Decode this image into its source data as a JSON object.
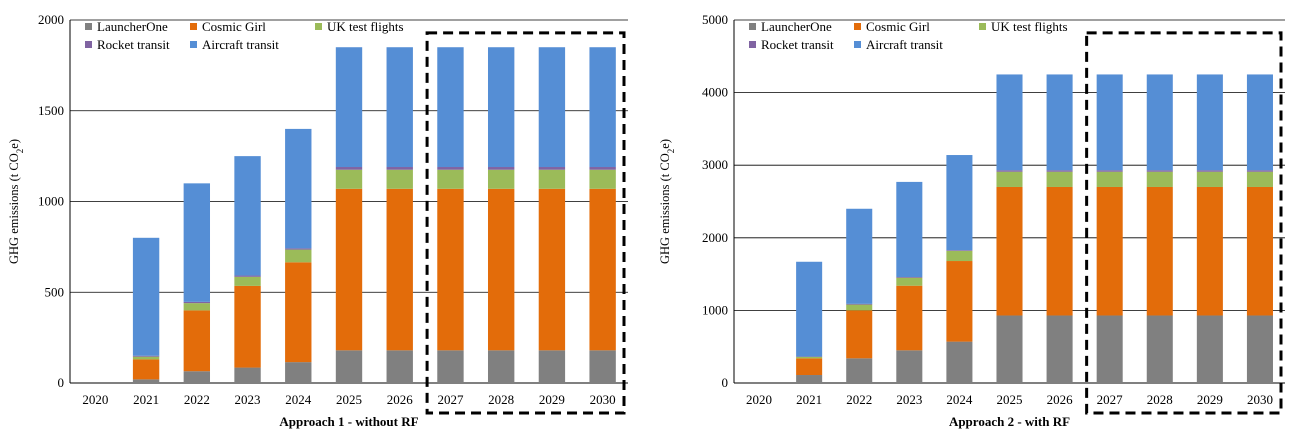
{
  "chart_data": [
    {
      "type": "bar",
      "stacked": true,
      "caption": "Approach 1 - without RF",
      "ylabel_main": "GHG emissions (t CO",
      "ylabel_sub": "2",
      "ylabel_end": "e)",
      "ylim": [
        0,
        2000
      ],
      "yticks": [
        0,
        500,
        1000,
        1500,
        2000
      ],
      "grid": true,
      "legend_placement": "top-left",
      "categories": [
        "2020",
        "2021",
        "2022",
        "2023",
        "2024",
        "2025",
        "2026",
        "2027",
        "2028",
        "2029",
        "2030"
      ],
      "highlight_box": {
        "from": "2027",
        "to": "2030",
        "style": "dashed"
      },
      "series": [
        {
          "name": "LauncherOne",
          "color": "#808080",
          "values": [
            0,
            20,
            65,
            85,
            115,
            180,
            180,
            180,
            180,
            180,
            180
          ]
        },
        {
          "name": "Cosmic Girl",
          "color": "#e36c0a",
          "values": [
            0,
            110,
            335,
            450,
            550,
            890,
            890,
            890,
            890,
            890,
            890
          ]
        },
        {
          "name": "UK test flights",
          "color": "#9bbb59",
          "values": [
            0,
            15,
            40,
            50,
            70,
            105,
            105,
            105,
            105,
            105,
            105
          ]
        },
        {
          "name": "Rocket transit",
          "color": "#8064a2",
          "values": [
            0,
            5,
            7,
            7,
            7,
            15,
            15,
            15,
            15,
            15,
            15
          ]
        },
        {
          "name": "Aircraft transit",
          "color": "#558ed5",
          "values": [
            0,
            650,
            653,
            658,
            658,
            660,
            660,
            660,
            660,
            660,
            660
          ]
        }
      ]
    },
    {
      "type": "bar",
      "stacked": true,
      "caption": "Approach 2 - with RF",
      "ylabel_main": "GHG emissions (t CO",
      "ylabel_sub": "2",
      "ylabel_end": "e)",
      "ylim": [
        0,
        5000
      ],
      "yticks": [
        0,
        1000,
        2000,
        3000,
        4000,
        5000
      ],
      "grid": true,
      "legend_placement": "top-left",
      "categories": [
        "2020",
        "2021",
        "2022",
        "2023",
        "2024",
        "2025",
        "2026",
        "2027",
        "2028",
        "2029",
        "2030"
      ],
      "highlight_box": {
        "from": "2027",
        "to": "2030",
        "style": "dashed"
      },
      "series": [
        {
          "name": "LauncherOne",
          "color": "#808080",
          "values": [
            0,
            110,
            340,
            450,
            570,
            930,
            930,
            930,
            930,
            930,
            930
          ]
        },
        {
          "name": "Cosmic Girl",
          "color": "#e36c0a",
          "values": [
            0,
            230,
            660,
            890,
            1110,
            1770,
            1770,
            1770,
            1770,
            1770,
            1770
          ]
        },
        {
          "name": "UK test flights",
          "color": "#9bbb59",
          "values": [
            0,
            20,
            80,
            110,
            140,
            210,
            210,
            210,
            210,
            210,
            210
          ]
        },
        {
          "name": "Rocket transit",
          "color": "#8064a2",
          "values": [
            0,
            5,
            10,
            10,
            10,
            20,
            20,
            20,
            20,
            20,
            20
          ]
        },
        {
          "name": "Aircraft transit",
          "color": "#558ed5",
          "values": [
            0,
            1305,
            1310,
            1310,
            1310,
            1320,
            1320,
            1320,
            1320,
            1320,
            1320
          ]
        }
      ]
    }
  ]
}
